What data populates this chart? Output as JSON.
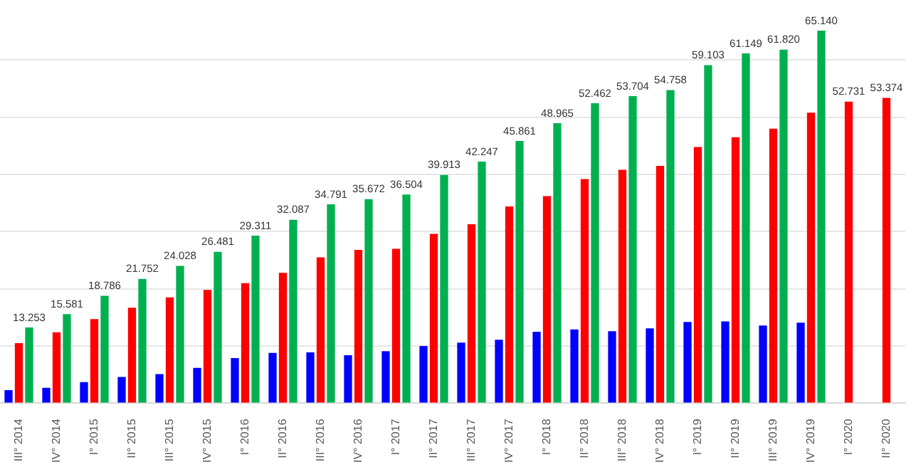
{
  "chart_data": {
    "type": "bar",
    "categories": [
      "III° 2014",
      "IV° 2014",
      "I° 2015",
      "II° 2015",
      "III° 2015",
      "IV° 2015",
      "I° 2016",
      "II° 2016",
      "III° 2016",
      "IV° 2016",
      "I° 2017",
      "II° 2017",
      "III° 2017",
      "IV° 2017",
      "I° 2018",
      "II° 2018",
      "III° 2018",
      "IV° 2018",
      "I° 2019",
      "II° 2019",
      "III° 2019",
      "IV° 2019",
      "I° 2020",
      "II° 2020"
    ],
    "series": [
      {
        "color": "#0000ff",
        "values": [
          2.3,
          2.7,
          3.7,
          4.6,
          5.1,
          6.2,
          7.9,
          8.8,
          8.9,
          8.4,
          9.1,
          10.0,
          10.6,
          11.1,
          12.5,
          12.9,
          12.6,
          13.1,
          14.2,
          14.3,
          13.6,
          14.1,
          null,
          null
        ]
      },
      {
        "color": "#ff0000",
        "values": [
          10.5,
          12.4,
          14.7,
          16.7,
          18.5,
          19.8,
          21.0,
          22.8,
          25.5,
          26.8,
          27.0,
          29.6,
          31.3,
          34.4,
          36.2,
          39.2,
          40.8,
          41.5,
          44.8,
          46.5,
          48.0,
          50.8,
          52.731,
          53.374
        ],
        "value_labels": [
          null,
          null,
          null,
          null,
          null,
          null,
          null,
          null,
          null,
          null,
          null,
          null,
          null,
          null,
          null,
          null,
          null,
          null,
          null,
          null,
          null,
          null,
          "52.731",
          "53.374"
        ]
      },
      {
        "color": "#00b050",
        "values": [
          13.253,
          15.581,
          18.786,
          21.752,
          24.028,
          26.481,
          29.311,
          32.087,
          34.791,
          35.672,
          36.504,
          39.913,
          42.247,
          45.861,
          48.965,
          52.462,
          53.704,
          54.758,
          59.103,
          61.149,
          61.82,
          65.14,
          null,
          null
        ],
        "value_labels": [
          "13.253",
          "15.581",
          "18.786",
          "21.752",
          "24.028",
          "26.481",
          "29.311",
          "32.087",
          "34.791",
          "35.672",
          "36.504",
          "39.913",
          "42.247",
          "45.861",
          "48.965",
          "52.462",
          "53.704",
          "54.758",
          "59.103",
          "61.149",
          "61.820",
          "65.140",
          null,
          null
        ]
      }
    ],
    "yticks": [
      {
        "value": 0,
        "label": null
      },
      {
        "value": 10,
        "label": null
      },
      {
        "value": 20,
        "label": null
      },
      {
        "value": 30,
        "label": null
      },
      {
        "value": 40,
        "label": null
      },
      {
        "value": 50,
        "label": null
      },
      {
        "value": 60,
        "label": null
      }
    ],
    "grid": "y",
    "tick_labels": "x",
    "legend": false
  }
}
